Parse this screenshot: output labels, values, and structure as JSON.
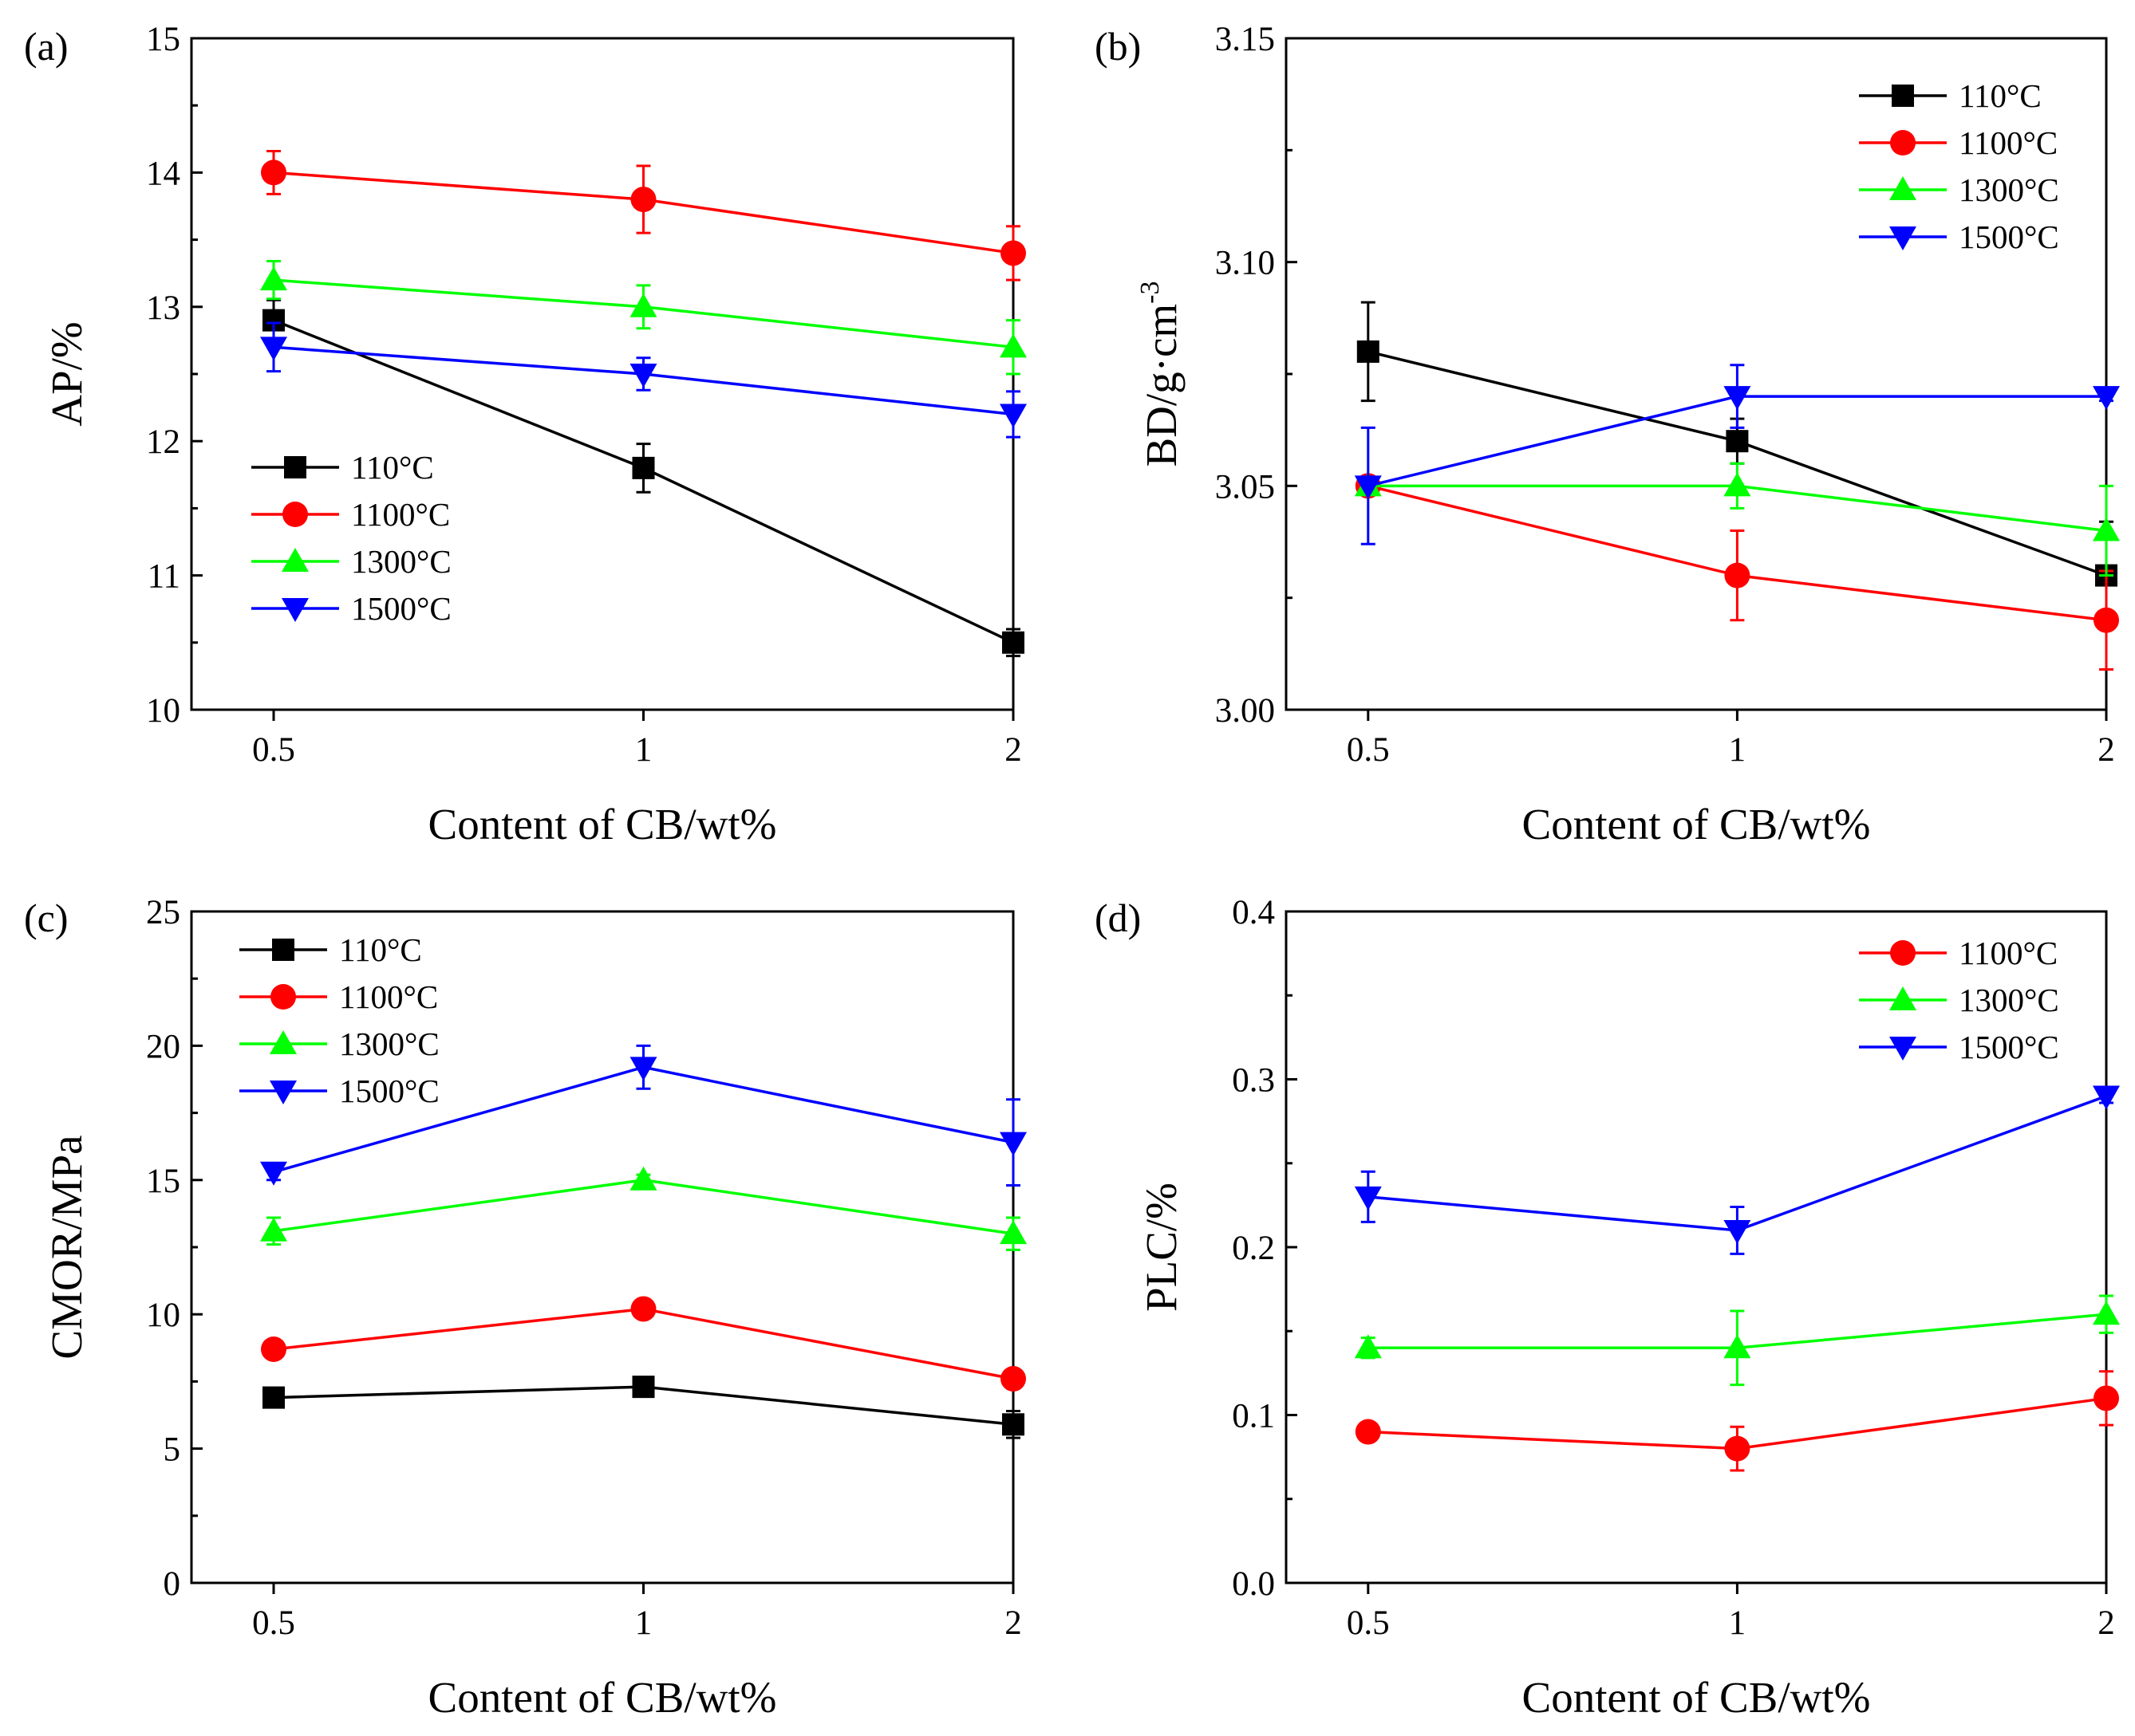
{
  "chart_data": [
    {
      "type": "line",
      "panel_label": "(a)",
      "xlabel": "Content of CB/wt%",
      "ylabel": "AP/%",
      "categories": [
        "0.5",
        "1",
        "2"
      ],
      "ylim": [
        10,
        15
      ],
      "yticks": [
        "10",
        "11",
        "12",
        "13",
        "14",
        "15"
      ],
      "legend_position": "lower-left",
      "series": [
        {
          "name": "110°C",
          "color": "#000000",
          "marker": "square",
          "values": [
            12.9,
            11.8,
            10.5
          ],
          "errors": [
            0.15,
            0.18,
            0.1
          ]
        },
        {
          "name": "1100°C",
          "color": "#ff0000",
          "marker": "circle",
          "values": [
            14.0,
            13.8,
            13.4
          ],
          "errors": [
            0.16,
            0.25,
            0.2
          ]
        },
        {
          "name": "1300°C",
          "color": "#00ff00",
          "marker": "triangle-up",
          "values": [
            13.2,
            13.0,
            12.7
          ],
          "errors": [
            0.14,
            0.16,
            0.2
          ]
        },
        {
          "name": "1500°C",
          "color": "#0000ff",
          "marker": "triangle-down",
          "values": [
            12.7,
            12.5,
            12.2
          ],
          "errors": [
            0.18,
            0.12,
            0.17
          ]
        }
      ]
    },
    {
      "type": "line",
      "panel_label": "(b)",
      "xlabel": "Content of CB/wt%",
      "ylabel": "BD/g·cm",
      "ylabel_sup": "-3",
      "categories": [
        "0.5",
        "1",
        "2"
      ],
      "ylim": [
        3.0,
        3.15
      ],
      "yticks": [
        "3.00",
        "3.05",
        "3.10",
        "3.15"
      ],
      "legend_position": "top-right",
      "series": [
        {
          "name": "110°C",
          "color": "#000000",
          "marker": "square",
          "values": [
            3.08,
            3.06,
            3.03
          ],
          "errors": [
            0.011,
            0.005,
            0.012
          ]
        },
        {
          "name": "1100°C",
          "color": "#ff0000",
          "marker": "circle",
          "values": [
            3.05,
            3.03,
            3.02
          ],
          "errors": [
            0.0,
            0.01,
            0.011
          ]
        },
        {
          "name": "1300°C",
          "color": "#00ff00",
          "marker": "triangle-up",
          "values": [
            3.05,
            3.05,
            3.04
          ],
          "errors": [
            0.002,
            0.005,
            0.01
          ]
        },
        {
          "name": "1500°C",
          "color": "#0000ff",
          "marker": "triangle-down",
          "values": [
            3.05,
            3.07,
            3.07
          ],
          "errors": [
            0.013,
            0.007,
            0.001
          ]
        }
      ]
    },
    {
      "type": "line",
      "panel_label": "(c)",
      "xlabel": "Content of CB/wt%",
      "ylabel": "CMOR/MPa",
      "categories": [
        "0.5",
        "1",
        "2"
      ],
      "ylim": [
        0,
        25
      ],
      "yticks": [
        "0",
        "5",
        "10",
        "15",
        "20",
        "25"
      ],
      "legend_position": "top-left",
      "series": [
        {
          "name": "110°C",
          "color": "#000000",
          "marker": "square",
          "values": [
            6.9,
            7.3,
            5.9
          ],
          "errors": [
            0.3,
            0.3,
            0.5
          ]
        },
        {
          "name": "1100°C",
          "color": "#ff0000",
          "marker": "circle",
          "values": [
            8.7,
            10.2,
            7.6
          ],
          "errors": [
            0.3,
            0.3,
            0.3
          ]
        },
        {
          "name": "1300°C",
          "color": "#00ff00",
          "marker": "triangle-up",
          "values": [
            13.1,
            15.0,
            13.0
          ],
          "errors": [
            0.5,
            0.2,
            0.6
          ]
        },
        {
          "name": "1500°C",
          "color": "#0000ff",
          "marker": "triangle-down",
          "values": [
            15.3,
            19.2,
            16.4
          ],
          "errors": [
            0.3,
            0.8,
            1.6
          ]
        }
      ]
    },
    {
      "type": "line",
      "panel_label": "(d)",
      "xlabel": "Content of CB/wt%",
      "ylabel": "PLC/%",
      "categories": [
        "0.5",
        "1",
        "2"
      ],
      "ylim": [
        0.0,
        0.4
      ],
      "yticks": [
        "0.0",
        "0.1",
        "0.2",
        "0.3",
        "0.4"
      ],
      "legend_position": "top-right",
      "series": [
        {
          "name": "1100°C",
          "color": "#ff0000",
          "marker": "circle",
          "values": [
            0.09,
            0.08,
            0.11
          ],
          "errors": [
            0.002,
            0.013,
            0.016
          ]
        },
        {
          "name": "1300°C",
          "color": "#00ff00",
          "marker": "triangle-up",
          "values": [
            0.14,
            0.14,
            0.16
          ],
          "errors": [
            0.006,
            0.022,
            0.011
          ]
        },
        {
          "name": "1500°C",
          "color": "#0000ff",
          "marker": "triangle-down",
          "values": [
            0.23,
            0.21,
            0.29
          ],
          "errors": [
            0.015,
            0.014,
            0.004
          ]
        }
      ]
    }
  ]
}
